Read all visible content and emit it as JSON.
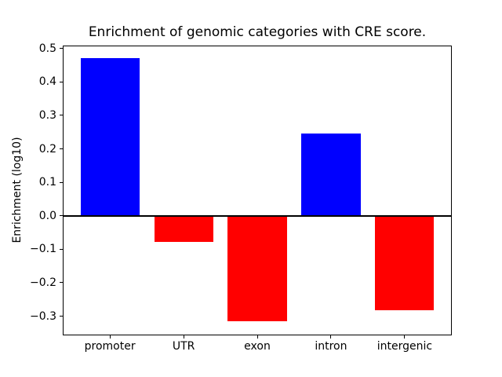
{
  "figure": {
    "background": "#ffffff"
  },
  "chart_data": {
    "type": "bar",
    "title": "Enrichment of genomic categories with CRE score.",
    "ylabel": "Enrichment (log10)",
    "xlabel": "",
    "categories": [
      "promoter",
      "UTR",
      "exon",
      "intron",
      "intergenic"
    ],
    "values": [
      0.47,
      -0.078,
      -0.315,
      0.245,
      -0.283
    ],
    "bar_colors": [
      "#0000ff",
      "#ff0000",
      "#ff0000",
      "#0000ff",
      "#ff0000"
    ],
    "positive_color": "#0000ff",
    "negative_color": "#ff0000",
    "y_ticks": [
      0.5,
      0.4,
      0.3,
      0.2,
      0.1,
      0.0,
      -0.1,
      -0.2,
      -0.3
    ],
    "y_tick_labels": [
      "0.5",
      "0.4",
      "0.3",
      "0.2",
      "0.1",
      "0.0",
      "−0.1",
      "−0.2",
      "−0.3"
    ],
    "ylim": [
      -0.3575,
      0.5085
    ],
    "xlim": [
      -0.64,
      4.64
    ],
    "bar_width": 0.8,
    "zero_line": true,
    "zero_line_color": "#000000",
    "grid": false,
    "axis_color": "#000000",
    "text_color": "#000000"
  }
}
